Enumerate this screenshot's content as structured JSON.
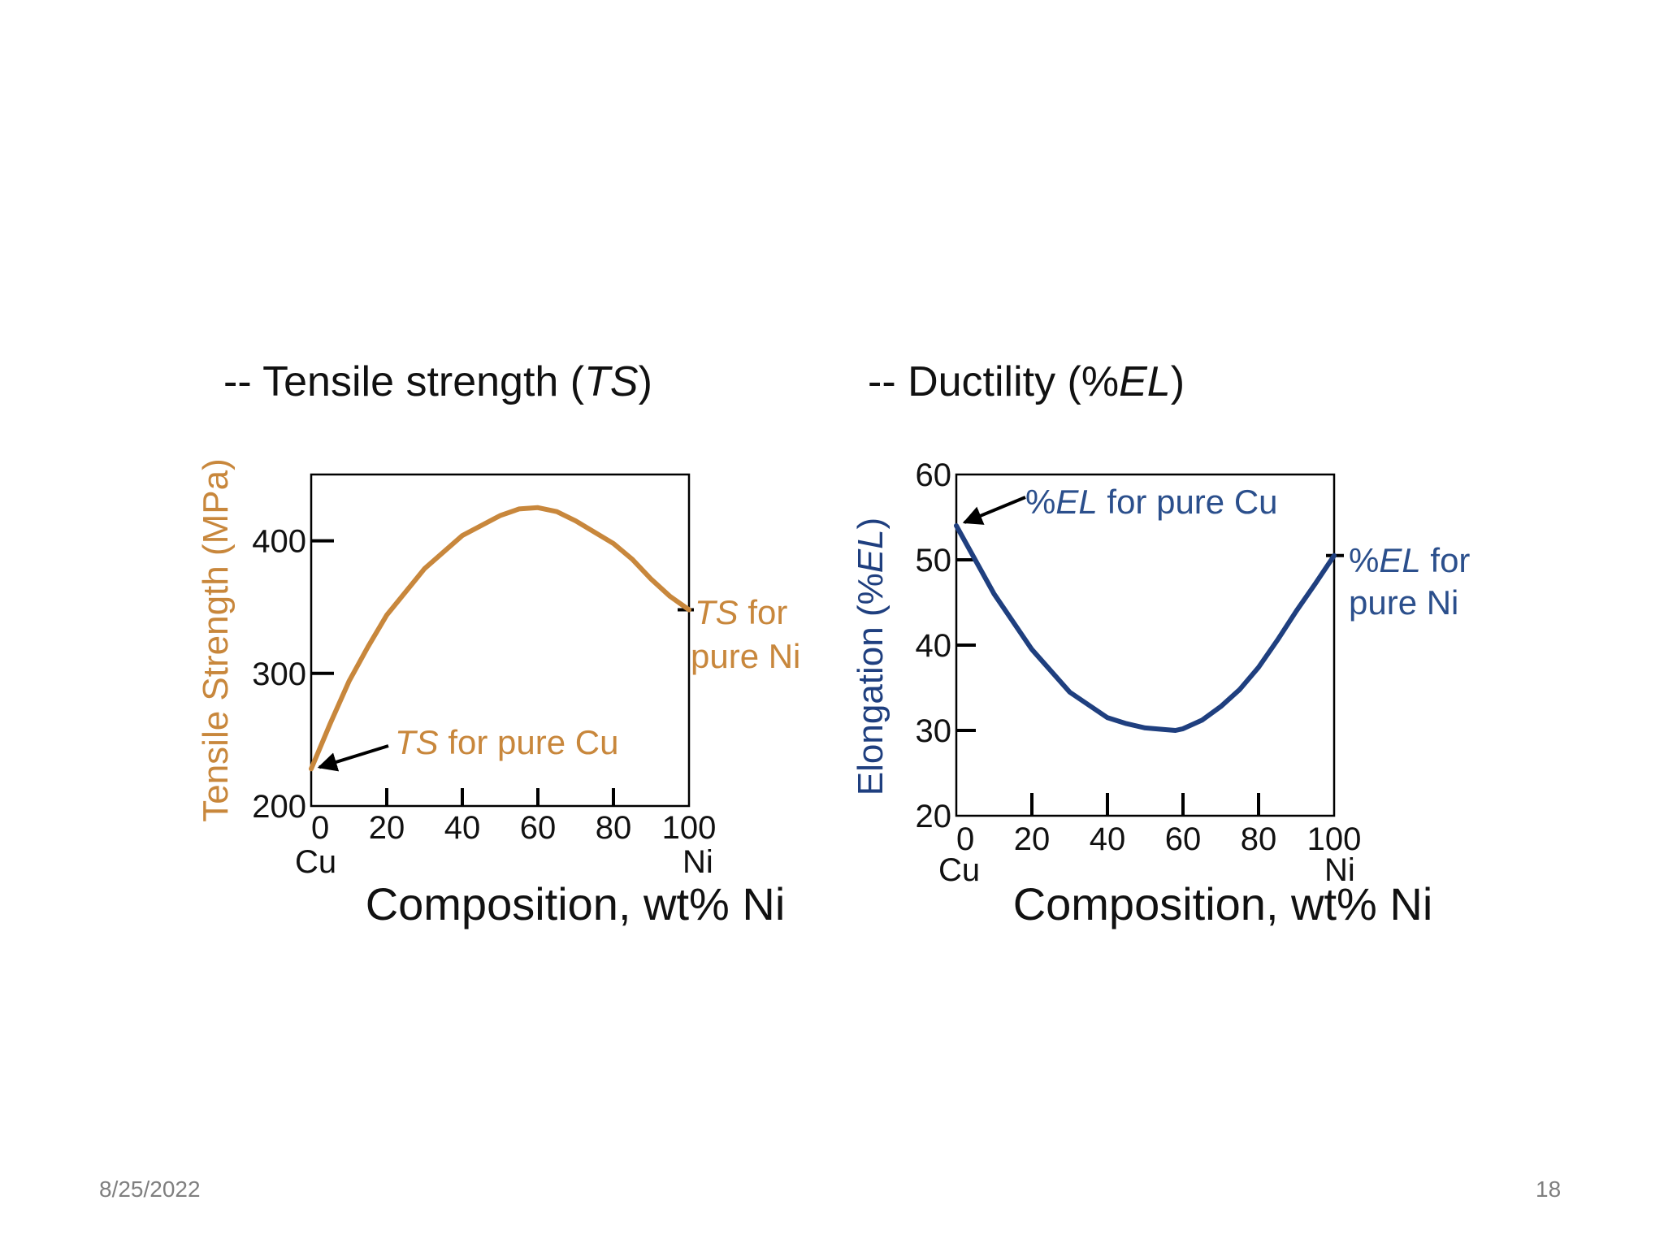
{
  "slide": {
    "footer_date": "8/25/2022",
    "page_number": "18"
  },
  "colors": {
    "ts": "#c8873c",
    "el": "#1f3f7f",
    "ts_annot": "#c8873c",
    "el_annot": "#2b4f8c",
    "axis": "#000000",
    "footer": "#7f7f7f"
  },
  "chart_data": [
    {
      "type": "line",
      "heading": "-- Tensile strength (TS)",
      "ylabel": "Tensile Strength (MPa)",
      "xlabel": "Composition, wt% Ni",
      "xlim": [
        0,
        100
      ],
      "ylim": [
        200,
        450
      ],
      "x_ticks": [
        "0",
        "20",
        "40",
        "60",
        "80",
        "100"
      ],
      "y_ticks": [
        "200",
        "300",
        "400"
      ],
      "x_end_labels": [
        "Cu",
        "Ni"
      ],
      "grid": false,
      "series": [
        {
          "x": [
            0,
            5,
            10,
            15,
            20,
            30,
            40,
            50,
            55,
            60,
            65,
            70,
            80,
            85,
            90,
            95,
            100
          ],
          "y": [
            228,
            262,
            294,
            320,
            344,
            379,
            404,
            419,
            424,
            425,
            422,
            415,
            398,
            386,
            371,
            358,
            348
          ]
        }
      ],
      "annotations": [
        {
          "text": "TS for pure Cu",
          "points_to": [
            0,
            228
          ]
        },
        {
          "text_lines": [
            "TS for",
            "pure Ni"
          ],
          "points_to": [
            100,
            348
          ]
        }
      ]
    },
    {
      "type": "line",
      "heading": "-- Ductility (%EL)",
      "ylabel": "Elongation (%EL)",
      "xlabel": "Composition, wt% Ni",
      "xlim": [
        0,
        100
      ],
      "ylim": [
        20,
        60
      ],
      "x_ticks": [
        "0",
        "20",
        "40",
        "60",
        "80",
        "100"
      ],
      "y_ticks": [
        "20",
        "30",
        "40",
        "50",
        "60"
      ],
      "x_end_labels": [
        "Cu",
        "Ni"
      ],
      "grid": false,
      "series": [
        {
          "x": [
            0,
            10,
            20,
            30,
            40,
            45,
            50,
            55,
            58,
            60,
            65,
            70,
            75,
            80,
            85,
            90,
            95,
            100
          ],
          "y": [
            54,
            46,
            39.5,
            34.5,
            31.5,
            30.8,
            30.3,
            30.1,
            30.0,
            30.2,
            31.2,
            32.8,
            34.8,
            37.4,
            40.6,
            44.0,
            47.2,
            50.5
          ]
        }
      ],
      "annotations": [
        {
          "text": "%EL for pure Cu",
          "points_to": [
            0,
            54
          ]
        },
        {
          "text_lines": [
            "%EL for",
            "pure Ni"
          ],
          "points_to": [
            100,
            50.5
          ]
        }
      ]
    }
  ]
}
